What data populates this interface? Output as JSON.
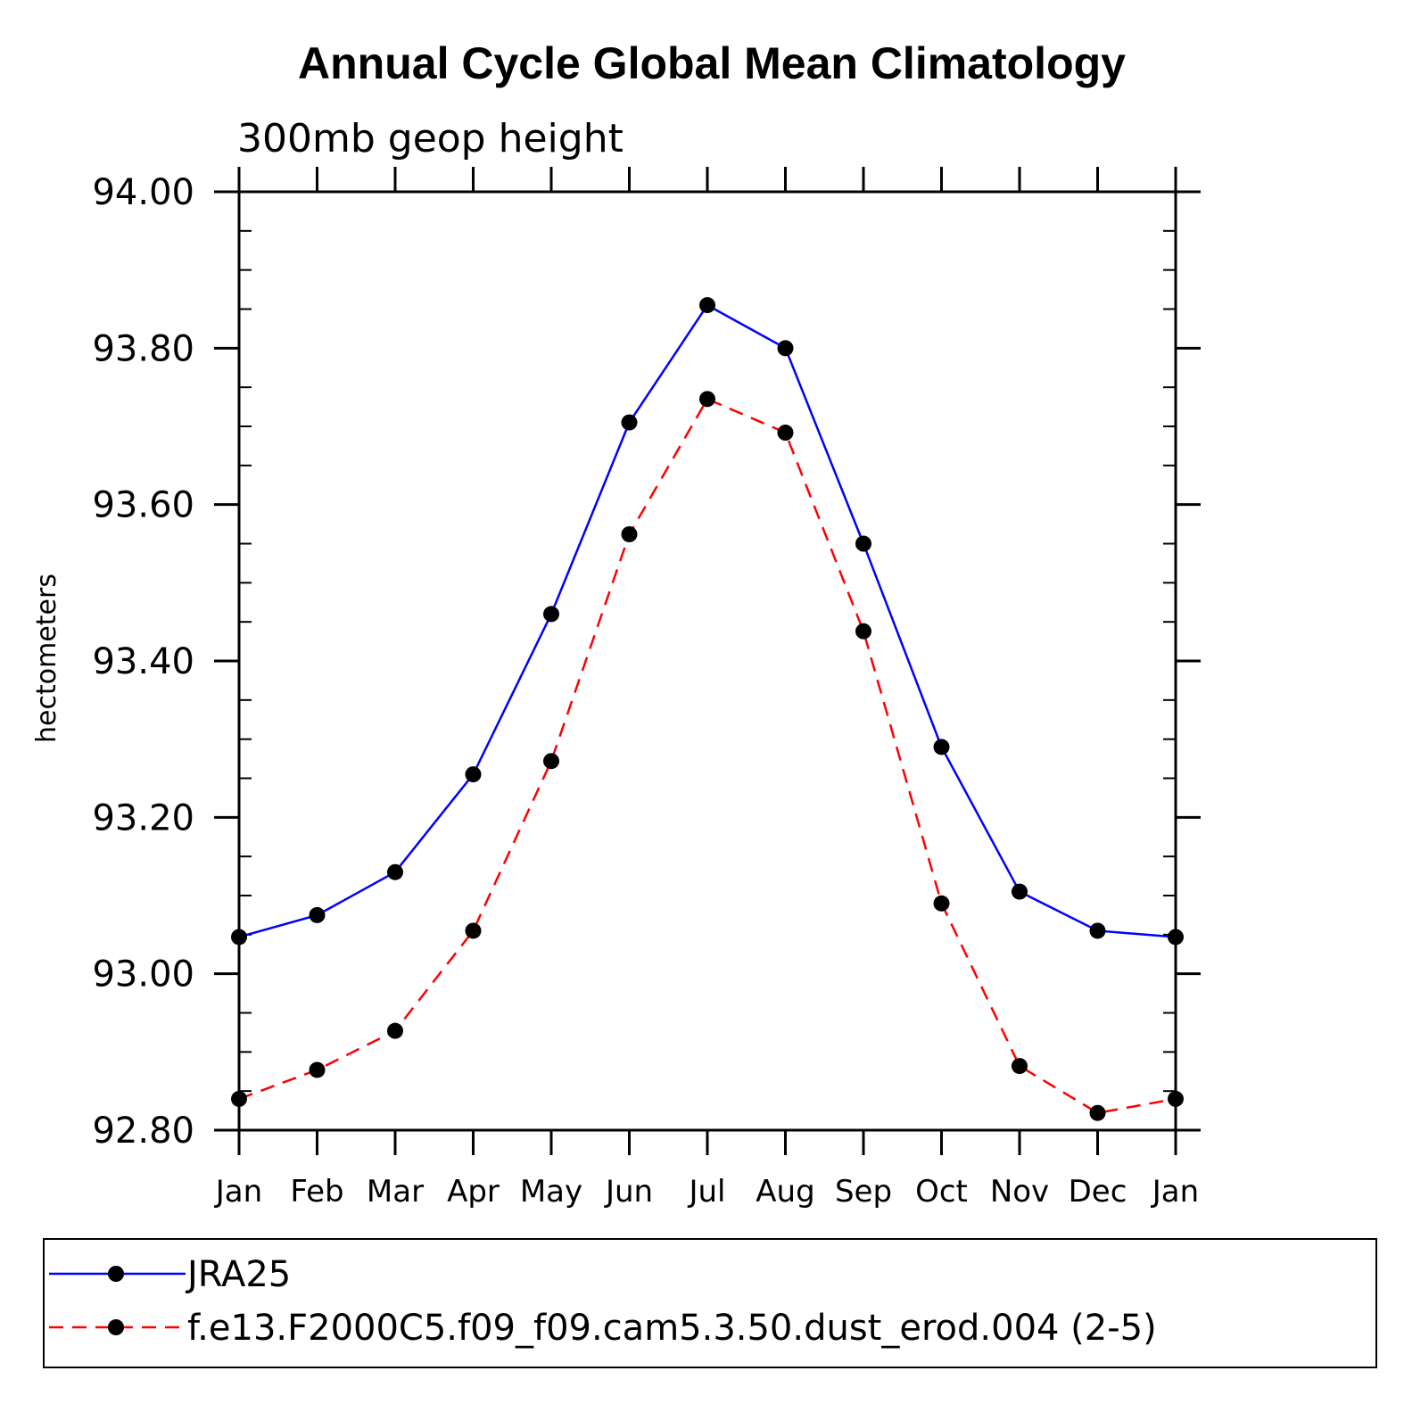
{
  "chart_data": {
    "type": "line",
    "title": "Annual Cycle Global Mean Climatology",
    "subtitle": "300mb geop height",
    "ylabel": "hectometers",
    "xlabel": "",
    "categories": [
      "Jan",
      "Feb",
      "Mar",
      "Apr",
      "May",
      "Jun",
      "Jul",
      "Aug",
      "Sep",
      "Oct",
      "Nov",
      "Dec",
      "Jan"
    ],
    "ylim": [
      92.8,
      94.0
    ],
    "yticks": [
      "92.80",
      "93.00",
      "93.20",
      "93.40",
      "93.60",
      "93.80",
      "94.00"
    ],
    "ytick_values": [
      92.8,
      93.0,
      93.2,
      93.4,
      93.6,
      93.8,
      94.0
    ],
    "legend_placement": "bottom",
    "series": [
      {
        "name": "JRA25",
        "color": "#0000ff",
        "dashed": false,
        "values": [
          93.047,
          93.075,
          93.13,
          93.255,
          93.46,
          93.705,
          93.855,
          93.8,
          93.55,
          93.29,
          93.105,
          93.055,
          93.047
        ]
      },
      {
        "name": "f.e13.F2000C5.f09_f09.cam5.3.50.dust_erod.004 (2-5)",
        "color": "#ff0000",
        "dashed": true,
        "values": [
          92.84,
          92.877,
          92.927,
          93.055,
          93.272,
          93.562,
          93.735,
          93.692,
          93.438,
          93.09,
          92.882,
          92.822,
          92.84
        ]
      }
    ]
  }
}
